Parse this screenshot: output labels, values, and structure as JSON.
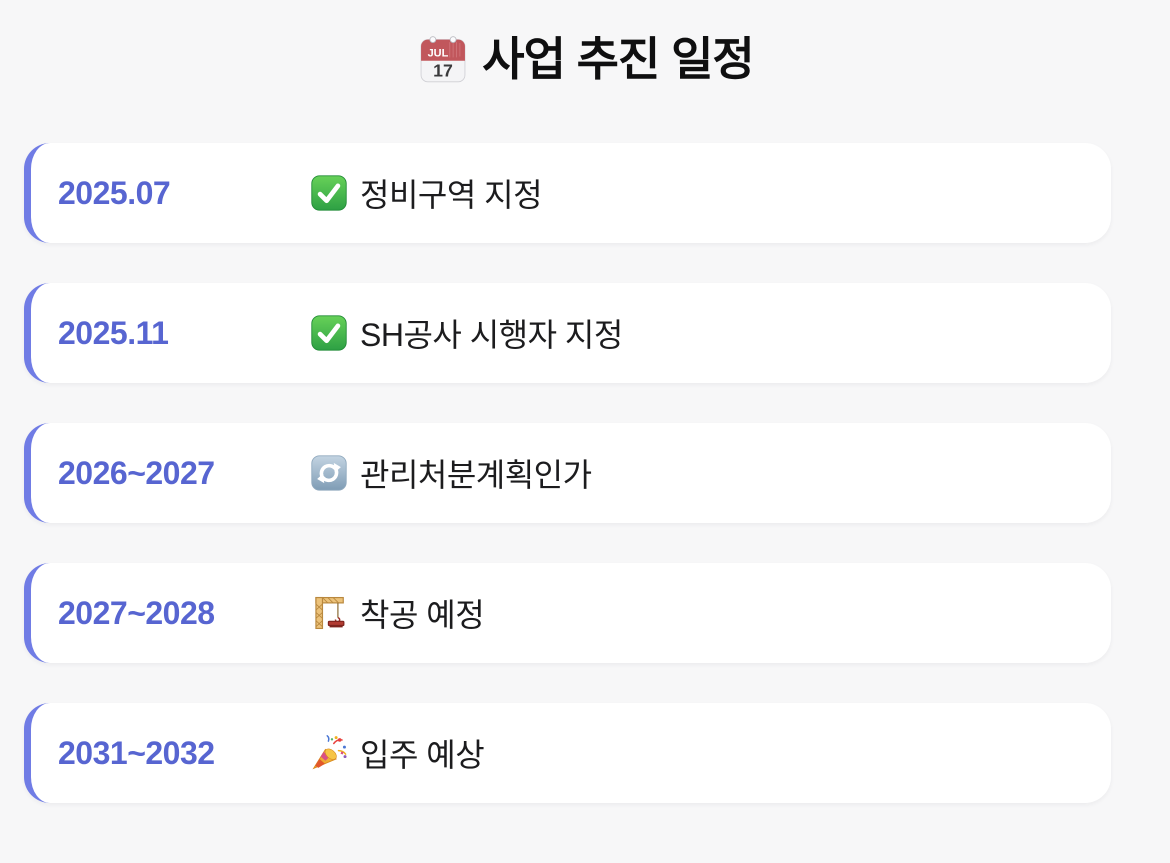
{
  "header": {
    "icon": "calendar-emoji",
    "title": "사업 추진 일정",
    "calendar_month": "JUL",
    "calendar_day": "17"
  },
  "timeline": {
    "items": [
      {
        "date": "2025.07",
        "icon": "check-emoji",
        "label": "정비구역 지정"
      },
      {
        "date": "2025.11",
        "icon": "check-emoji",
        "label": "SH공사 시행자 지정"
      },
      {
        "date": "2026~2027",
        "icon": "arrows-cycle-emoji",
        "label": "관리처분계획인가"
      },
      {
        "date": "2027~2028",
        "icon": "crane-emoji",
        "label": "착공 예정"
      },
      {
        "date": "2031~2032",
        "icon": "party-popper-emoji",
        "label": "입주 예상"
      }
    ]
  },
  "colors": {
    "background": "#f7f7f8",
    "card": "#ffffff",
    "accent_border": "#707ce5",
    "date_text": "#5765d1",
    "task_text": "#1c1c1e",
    "title_text": "#0f0f10",
    "check_green": "#2da044",
    "cycle_blue": "#7e9cb5",
    "calendar_red": "#c1575c"
  }
}
